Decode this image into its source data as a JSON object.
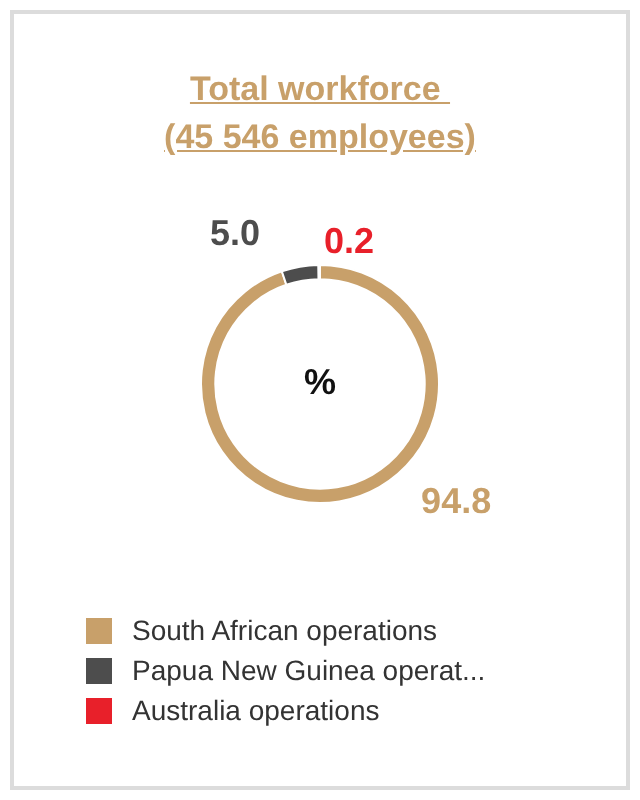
{
  "chart_data": {
    "type": "donut",
    "title": "Total workforce \n(45 546 employees)",
    "categories": [
      "South African operations",
      "Papua New Guinea operat...",
      "Australia operations"
    ],
    "values": [
      94.8,
      5.0,
      0.2
    ],
    "colors": [
      "#c8a06a",
      "#4d4d4d",
      "#e8202a"
    ],
    "value_labels": [
      "94.8",
      "5.0",
      "0.2"
    ],
    "annotations": [
      "%"
    ],
    "legend": "bottom"
  }
}
